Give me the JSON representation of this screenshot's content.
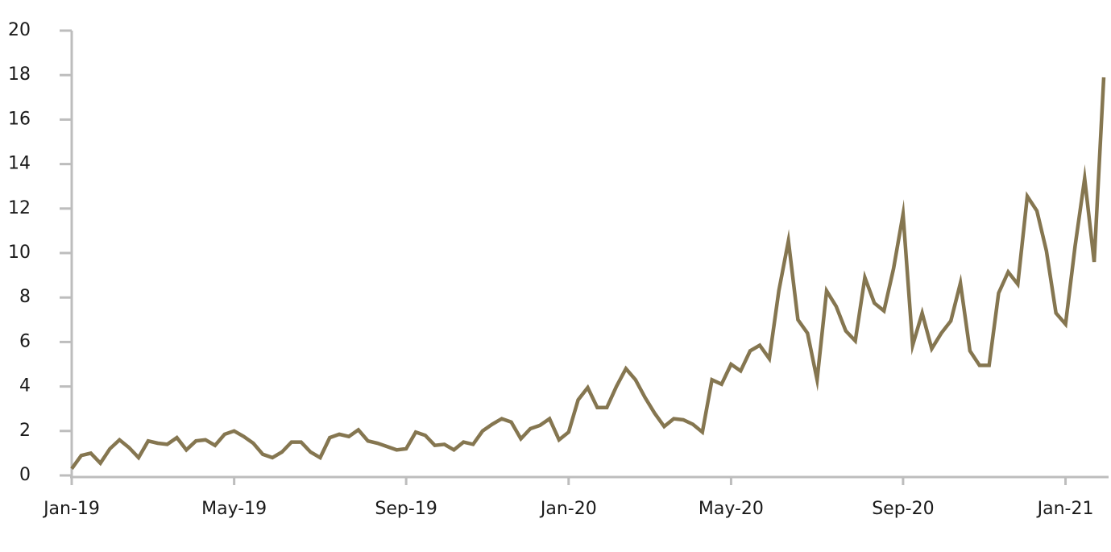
{
  "chart_data": {
    "type": "line",
    "categories": [
      "Jan-19",
      null,
      null,
      null,
      null,
      null,
      null,
      null,
      null,
      null,
      null,
      null,
      null,
      null,
      null,
      null,
      null,
      "May-19",
      null,
      null,
      null,
      null,
      null,
      null,
      null,
      null,
      null,
      null,
      null,
      null,
      null,
      null,
      null,
      null,
      null,
      "Sep-19",
      null,
      null,
      null,
      null,
      null,
      null,
      null,
      null,
      null,
      null,
      null,
      null,
      null,
      null,
      null,
      null,
      "Jan-20",
      null,
      null,
      null,
      null,
      null,
      null,
      null,
      null,
      null,
      null,
      null,
      null,
      null,
      null,
      null,
      null,
      "May-20",
      null,
      null,
      null,
      null,
      null,
      null,
      null,
      null,
      null,
      null,
      null,
      null,
      null,
      null,
      null,
      null,
      null,
      "Sep-20",
      null,
      null,
      null,
      null,
      null,
      null,
      null,
      null,
      null,
      null,
      null,
      null,
      null,
      null,
      null,
      null,
      "Jan-21",
      null,
      null,
      null,
      null
    ],
    "values": [
      0.3,
      0.9,
      1.0,
      0.55,
      1.2,
      1.6,
      1.25,
      0.8,
      1.55,
      1.45,
      1.4,
      1.7,
      1.15,
      1.55,
      1.6,
      1.35,
      1.85,
      2.0,
      1.75,
      1.45,
      0.95,
      0.8,
      1.05,
      1.5,
      1.5,
      1.05,
      0.8,
      1.7,
      1.85,
      1.75,
      2.05,
      1.55,
      1.45,
      1.3,
      1.15,
      1.2,
      1.95,
      1.8,
      1.35,
      1.4,
      1.15,
      1.5,
      1.4,
      2.0,
      2.3,
      2.55,
      2.4,
      1.65,
      2.1,
      2.25,
      2.55,
      1.6,
      1.95,
      3.4,
      3.95,
      3.05,
      3.05,
      4.0,
      4.8,
      4.3,
      3.5,
      2.8,
      2.2,
      2.55,
      2.5,
      2.3,
      1.95,
      4.3,
      4.1,
      5.0,
      4.7,
      5.6,
      5.85,
      5.25,
      8.3,
      10.55,
      7.0,
      6.4,
      4.3,
      8.3,
      7.6,
      6.5,
      6.05,
      8.9,
      7.75,
      7.4,
      9.3,
      11.75,
      5.85,
      7.3,
      5.7,
      6.4,
      6.95,
      8.65,
      5.6,
      4.95,
      4.95,
      8.2,
      9.15,
      8.6,
      12.55,
      11.9,
      10.1,
      7.3,
      6.8,
      10.3,
      13.35,
      9.6,
      17.9
    ],
    "color": "#857650",
    "ylim": [
      0,
      20
    ],
    "yticks": [
      0,
      2,
      4,
      6,
      8,
      10,
      12,
      14,
      16,
      18,
      20
    ],
    "grid": false
  }
}
